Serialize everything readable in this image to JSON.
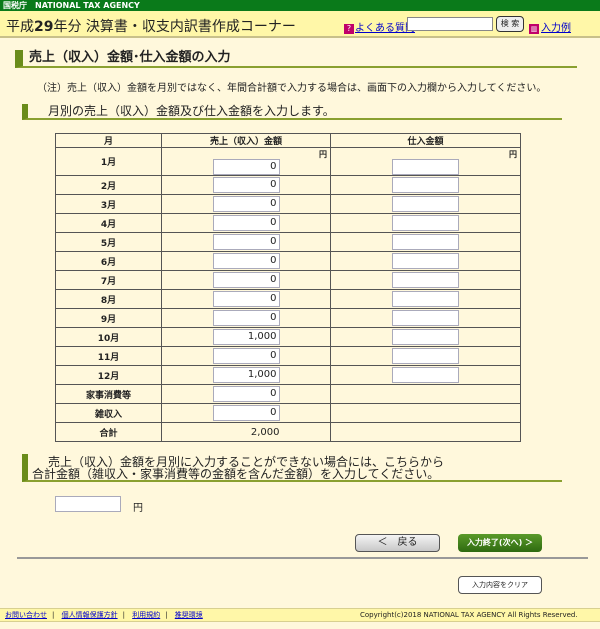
{
  "topbar": {
    "label": "国税庁　NATIONAL TAX AGENCY"
  },
  "header": {
    "title_pre": "平成",
    "title_year": "29",
    "title_post": "年分 決算書・収支内訳書作成コーナー",
    "faq_label": "よくある質問",
    "search_value": "",
    "search_button": "検 索",
    "example_label": "入力例"
  },
  "main": {
    "heading": "売上（収入）金額･仕入金額の入力",
    "note": "（注）売上（収入）金額を月別ではなく、年間合計額で入力する場合は、画面下の入力欄から入力してください。",
    "subheading": "月別の売上（収入）金額及び仕入金額を入力します。",
    "table": {
      "headers": [
        "月",
        "売上（収入）金額",
        "仕入金額"
      ],
      "unit": "円",
      "rows": [
        {
          "month": "1月",
          "sales": "0",
          "purchases": ""
        },
        {
          "month": "2月",
          "sales": "0",
          "purchases": ""
        },
        {
          "month": "3月",
          "sales": "0",
          "purchases": ""
        },
        {
          "month": "4月",
          "sales": "0",
          "purchases": ""
        },
        {
          "month": "5月",
          "sales": "0",
          "purchases": ""
        },
        {
          "month": "6月",
          "sales": "0",
          "purchases": ""
        },
        {
          "month": "7月",
          "sales": "0",
          "purchases": ""
        },
        {
          "month": "8月",
          "sales": "0",
          "purchases": ""
        },
        {
          "month": "9月",
          "sales": "0",
          "purchases": ""
        },
        {
          "month": "10月",
          "sales": "1,000",
          "purchases": ""
        },
        {
          "month": "11月",
          "sales": "0",
          "purchases": ""
        },
        {
          "month": "12月",
          "sales": "1,000",
          "purchases": ""
        }
      ],
      "household": {
        "label": "家事消費等",
        "sales": "0"
      },
      "misc": {
        "label": "雑収入",
        "sales": "0"
      },
      "total": {
        "label": "合計",
        "sales": "2,000"
      }
    },
    "alt_heading_line1": "売上（収入）金額を月別に入力することができない場合には、こちらから",
    "alt_heading_line2": "合計金額（雑収入・家事消費等の金額を含んだ金額）を入力してください。",
    "total_input_value": "",
    "total_unit": "円",
    "back_button": "＜　戻る",
    "next_button": "入力終了(次へ) ＞",
    "clear_button": "入力内容をクリア"
  },
  "footer": {
    "links": [
      "お問い合わせ",
      "個人情報保護方針",
      "利用規約",
      "推奨環境"
    ],
    "copyright": "Copyright(c)2018 NATIONAL TAX AGENCY All Rights Reserved."
  },
  "colors": {
    "topbar": "#0a7a1a",
    "header_bg": "#fff7a8",
    "accent": "#6a8c1a",
    "page_bg": "#fff8dc"
  }
}
